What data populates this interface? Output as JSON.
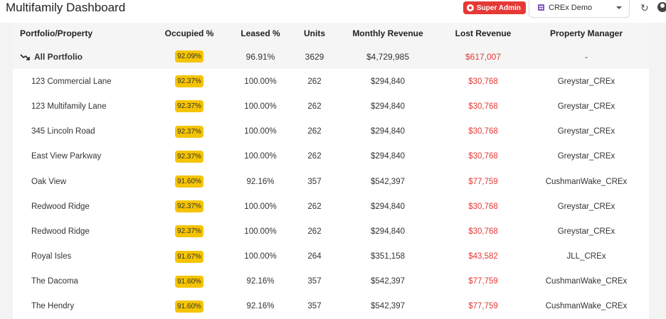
{
  "header": {
    "title": "Multifamily Dashboard",
    "role_badge": "Super Admin",
    "org_select_value": "CREx Demo"
  },
  "table": {
    "columns": [
      "Portfolio/Property",
      "Occupied %",
      "Leased %",
      "Units",
      "Monthly Revenue",
      "Lost Revenue",
      "Property Manager"
    ],
    "portfolio_row": {
      "name": "All Portfolio",
      "occupied": "92.09%",
      "leased": "96.91%",
      "units": "3629",
      "monthly_revenue": "$4,729,985",
      "lost_revenue": "$617,007",
      "manager": "-"
    },
    "rows": [
      {
        "name": "123 Commercial Lane",
        "occupied": "92.37%",
        "leased": "100.00%",
        "units": "262",
        "monthly_revenue": "$294,840",
        "lost_revenue": "$30,768",
        "manager": "Greystar_CREx"
      },
      {
        "name": "123 Multifamily Lane",
        "occupied": "92.37%",
        "leased": "100.00%",
        "units": "262",
        "monthly_revenue": "$294,840",
        "lost_revenue": "$30,768",
        "manager": "Greystar_CREx"
      },
      {
        "name": "345 Lincoln Road",
        "occupied": "92.37%",
        "leased": "100.00%",
        "units": "262",
        "monthly_revenue": "$294,840",
        "lost_revenue": "$30,768",
        "manager": "Greystar_CREx"
      },
      {
        "name": "East View Parkway",
        "occupied": "92.37%",
        "leased": "100.00%",
        "units": "262",
        "monthly_revenue": "$294,840",
        "lost_revenue": "$30,768",
        "manager": "Greystar_CREx"
      },
      {
        "name": "Oak View",
        "occupied": "91.60%",
        "leased": "92.16%",
        "units": "357",
        "monthly_revenue": "$542,397",
        "lost_revenue": "$77,759",
        "manager": "CushmanWake_CREx"
      },
      {
        "name": "Redwood Ridge",
        "occupied": "92.37%",
        "leased": "100.00%",
        "units": "262",
        "monthly_revenue": "$294,840",
        "lost_revenue": "$30,768",
        "manager": "Greystar_CREx"
      },
      {
        "name": "Redwood Ridge",
        "occupied": "92.37%",
        "leased": "100.00%",
        "units": "262",
        "monthly_revenue": "$294,840",
        "lost_revenue": "$30,768",
        "manager": "Greystar_CREx"
      },
      {
        "name": "Royal Isles",
        "occupied": "91.67%",
        "leased": "100.00%",
        "units": "264",
        "monthly_revenue": "$351,158",
        "lost_revenue": "$43,582",
        "manager": "JLL_CREx"
      },
      {
        "name": "The Dacoma",
        "occupied": "91.60%",
        "leased": "92.16%",
        "units": "357",
        "monthly_revenue": "$542,397",
        "lost_revenue": "$77,759",
        "manager": "CushmanWake_CREx"
      },
      {
        "name": "The Hendry",
        "occupied": "91.60%",
        "leased": "92.16%",
        "units": "357",
        "monthly_revenue": "$542,397",
        "lost_revenue": "$77,759",
        "manager": "CushmanWake_CREx"
      }
    ]
  },
  "colors": {
    "badge_red": "#e53935",
    "occupied_badge": "#f5c400",
    "lost_revenue": "#e53935"
  },
  "icons": {
    "role_badge": "admin-badge-icon",
    "org_select": "building-icon",
    "refresh": "refresh-icon",
    "user": "user-icon",
    "portfolio_trend": "trend-down-icon"
  }
}
